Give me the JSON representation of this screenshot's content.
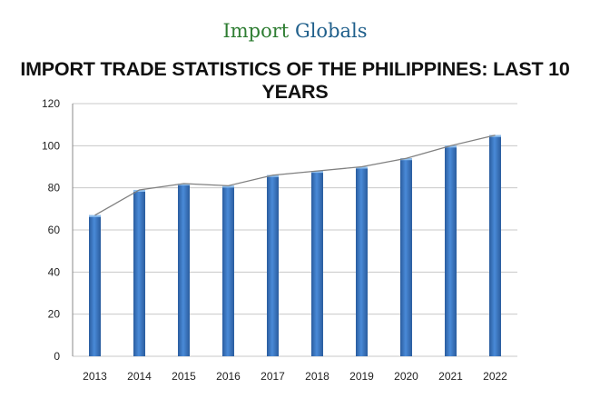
{
  "logo": {
    "part1": "Import",
    "part2": "Globals"
  },
  "chart_data": {
    "type": "bar",
    "title": "IMPORT TRADE STATISTICS OF THE PHILIPPINES: LAST 10 YEARS",
    "xlabel": "",
    "ylabel": "",
    "categories": [
      "2013",
      "2014",
      "2015",
      "2016",
      "2017",
      "2018",
      "2019",
      "2020",
      "2021",
      "2022"
    ],
    "values": [
      67,
      79,
      82,
      81,
      86,
      88,
      90,
      94,
      100,
      105
    ],
    "overlay_line": true,
    "ylim": [
      0,
      120
    ],
    "yticks": [
      0,
      20,
      40,
      60,
      80,
      100,
      120
    ],
    "grid": true,
    "legend": "none",
    "colors": {
      "bar": "#3f7fcf",
      "bar_dark": "#2a5c9e",
      "line": "#808080",
      "grid": "#c8c8c8"
    }
  }
}
